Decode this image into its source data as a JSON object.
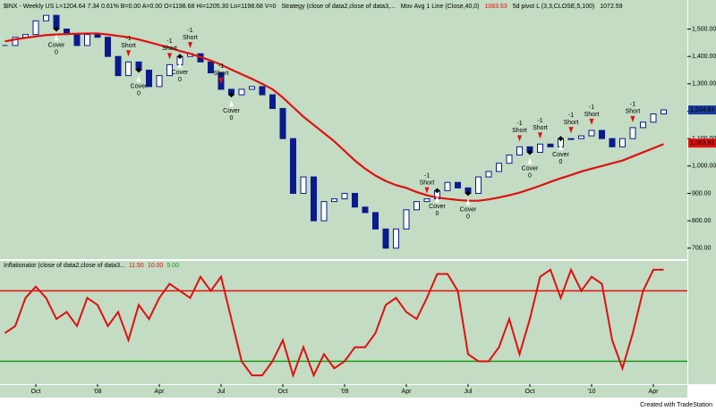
{
  "chart_data": [
    {
      "type": "candlestick",
      "header": [
        "$INX - Weekly  US  L=1204.64  7.34  0.61%  B=0.00  A=0.00  O=1198.68  Hi=1205.30  Lo=1198.68  V=0",
        "Strategy (close of data2,close of data3,...",
        "Mov Avg 1 Line (Close,40,0)",
        "1083.63",
        "5d pivot L (3,3,CLOSE,5,100)",
        "1072.59"
      ],
      "categories": [
        null,
        null,
        null,
        "Oct",
        null,
        null,
        null,
        null,
        null,
        "'08",
        null,
        null,
        null,
        null,
        null,
        "Apr",
        null,
        null,
        null,
        null,
        null,
        "Jul",
        null,
        null,
        null,
        null,
        null,
        "Oct",
        null,
        null,
        null,
        null,
        null,
        "'09",
        null,
        null,
        null,
        null,
        null,
        "Apr",
        null,
        null,
        null,
        null,
        null,
        "Jul",
        null,
        null,
        null,
        null,
        null,
        "Oct",
        null,
        null,
        null,
        null,
        null,
        "'10",
        null,
        null,
        null,
        null,
        null,
        "Apr",
        null
      ],
      "close": [
        1440,
        1470,
        1480,
        1530,
        1550,
        1500,
        1480,
        1440,
        1480,
        1470,
        1400,
        1330,
        1380,
        1350,
        1290,
        1330,
        1370,
        1400,
        1410,
        1380,
        1340,
        1280,
        1260,
        1280,
        1290,
        1260,
        1210,
        1100,
        900,
        960,
        800,
        870,
        880,
        900,
        850,
        830,
        770,
        700,
        770,
        840,
        870,
        880,
        910,
        940,
        920,
        900,
        960,
        980,
        1010,
        1040,
        1070,
        1050,
        1080,
        1070,
        1100,
        1100,
        1110,
        1130,
        1100,
        1070,
        1100,
        1140,
        1160,
        1190,
        1205
      ],
      "up_color": "#ffffff",
      "down_color": "#0b1a8c",
      "candle_stroke": "#0b1a8c",
      "ma": {
        "color": "#e01010",
        "values": [
          1455,
          1462,
          1468,
          1473,
          1478,
          1480,
          1482,
          1483,
          1484,
          1484,
          1480,
          1475,
          1470,
          1462,
          1452,
          1442,
          1432,
          1420,
          1410,
          1398,
          1385,
          1370,
          1352,
          1335,
          1318,
          1300,
          1280,
          1250,
          1215,
          1180,
          1150,
          1120,
          1090,
          1055,
          1020,
          990,
          965,
          945,
          930,
          920,
          905,
          893,
          885,
          880,
          876,
          873,
          873,
          878,
          885,
          893,
          903,
          915,
          928,
          942,
          955,
          967,
          980,
          990,
          1000,
          1010,
          1020,
          1035,
          1050,
          1065,
          1080
        ]
      },
      "ylim": [
        660,
        1580
      ],
      "yticks": [
        {
          "value": 700,
          "label": "700.00"
        },
        {
          "value": 800,
          "label": "800.00"
        },
        {
          "value": 900,
          "label": "900.00"
        },
        {
          "value": 1000,
          "label": "1,000.00"
        },
        {
          "value": 1100,
          "label": "1,100.00"
        },
        {
          "value": 1200,
          "label": "1,200.00"
        },
        {
          "value": 1300,
          "label": "1,300.00"
        },
        {
          "value": 1400,
          "label": "1,400.00"
        },
        {
          "value": 1500,
          "label": "1,500.00"
        }
      ],
      "last_markers": [
        {
          "value": 1204.64,
          "label": "1,204.64",
          "color": "#1a3a9c"
        },
        {
          "value": 1083.63,
          "label": "1,083.63",
          "color": "#e01010"
        }
      ],
      "signals": [
        {
          "label": "Cover",
          "qty": 0,
          "index": 5
        },
        {
          "label": "Short",
          "qty": -1,
          "index": 12
        },
        {
          "label": "Cover",
          "qty": 0,
          "index": 13
        },
        {
          "label": "Short",
          "qty": -1,
          "index": 16
        },
        {
          "label": "Cover",
          "qty": 0,
          "index": 17
        },
        {
          "label": "Short",
          "qty": -1,
          "index": 18
        },
        {
          "label": "Short",
          "qty": -1,
          "index": 21
        },
        {
          "label": "Cover",
          "qty": 0,
          "index": 22
        },
        {
          "label": "Short",
          "qty": -1,
          "index": 41
        },
        {
          "label": "Cover",
          "qty": 0,
          "index": 42
        },
        {
          "label": "Cover",
          "qty": 0,
          "index": 45
        },
        {
          "label": "Short",
          "qty": -1,
          "index": 50
        },
        {
          "label": "Cover",
          "qty": 0,
          "index": 51
        },
        {
          "label": "Short",
          "qty": -1,
          "index": 52
        },
        {
          "label": "Cover",
          "qty": 0,
          "index": 54
        },
        {
          "label": "Short",
          "qty": -1,
          "index": 55
        },
        {
          "label": "Short",
          "qty": -1,
          "index": 57
        },
        {
          "label": "Short",
          "qty": -1,
          "index": 61
        }
      ],
      "footer": "Created with TradeStation"
    },
    {
      "type": "line",
      "header": [
        "Inflationator (close of data2,close of data3...",
        "11.50",
        "10.00",
        "5.00"
      ],
      "header_colors": [
        "#000000",
        "#e01010",
        "#e01010",
        "#1a9a1a"
      ],
      "color": "#e01010",
      "values": [
        7.0,
        7.5,
        9.5,
        10.3,
        9.5,
        8.0,
        8.5,
        7.5,
        9.5,
        9.0,
        7.5,
        8.5,
        6.5,
        9.0,
        8.0,
        9.5,
        10.5,
        10.0,
        9.5,
        11.0,
        10.0,
        11.0,
        8.0,
        5.0,
        4.0,
        4.0,
        5.0,
        6.5,
        4.0,
        6.0,
        4.0,
        5.5,
        4.5,
        5.0,
        6.0,
        6.0,
        7.0,
        9.0,
        9.5,
        8.5,
        8.0,
        9.5,
        11.2,
        11.2,
        10.0,
        5.5,
        5.0,
        5.0,
        6.0,
        8.0,
        5.5,
        8.0,
        11.0,
        11.5,
        9.5,
        11.5,
        10.0,
        11.0,
        10.5,
        6.5,
        4.5,
        7.0,
        10.0,
        11.5,
        11.5
      ],
      "levels": [
        {
          "value": 10,
          "color": "#e01010"
        },
        {
          "value": 5,
          "color": "#1a9a1a"
        }
      ],
      "ylim": [
        3.5,
        12
      ]
    }
  ]
}
